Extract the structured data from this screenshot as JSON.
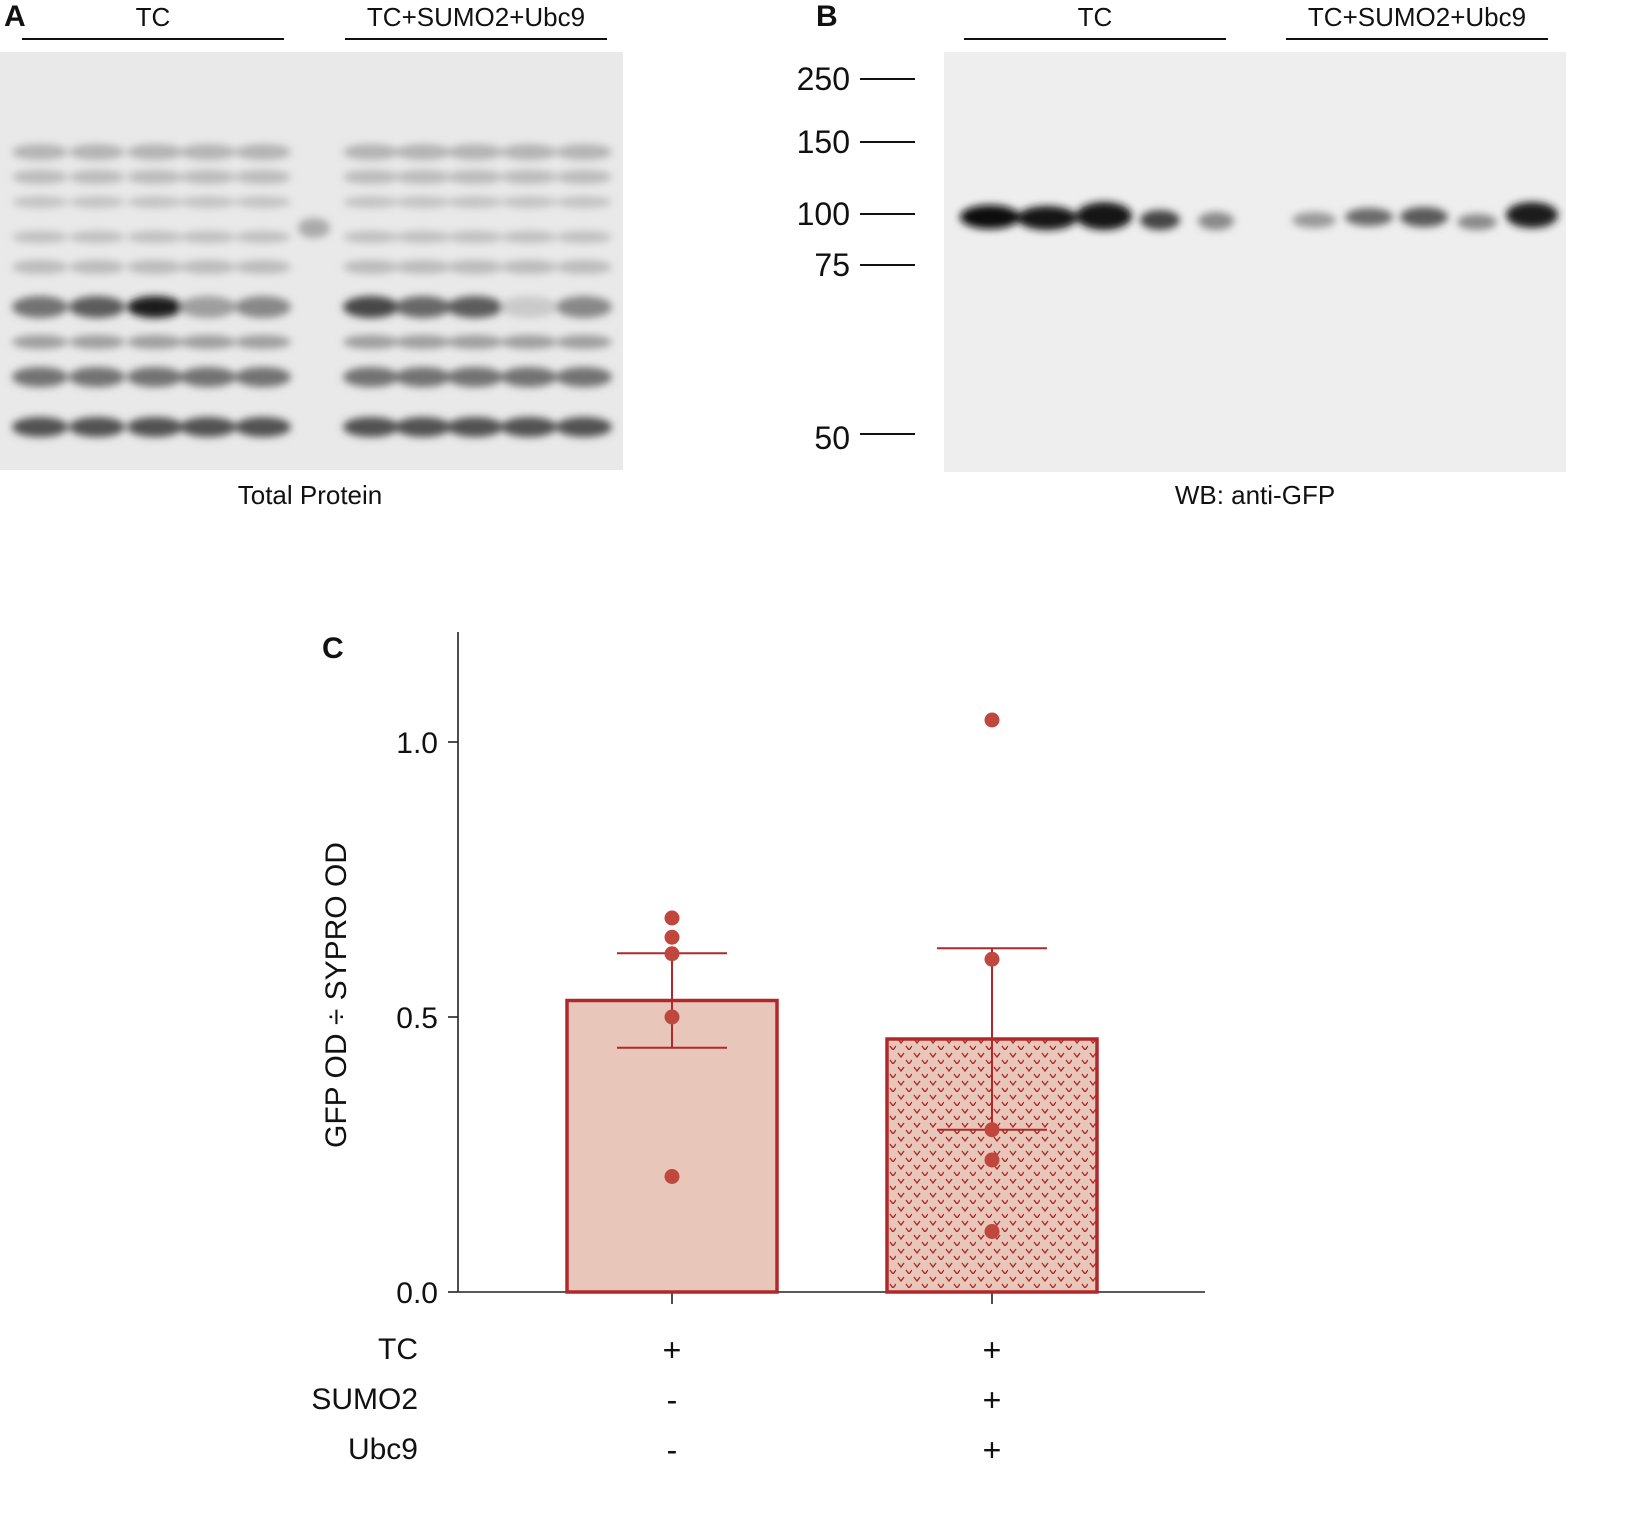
{
  "panel_a": {
    "letter": "A",
    "group_labels": [
      "TC",
      "TC+SUMO2+Ubc9"
    ],
    "caption": "Total Protein"
  },
  "panel_b": {
    "letter": "B",
    "group_labels": [
      "TC",
      "TC+SUMO2+Ubc9"
    ],
    "caption": "WB: anti-GFP",
    "mw_markers": [
      "250",
      "150",
      "100",
      "75",
      "50"
    ]
  },
  "panel_c": {
    "letter": "C",
    "condition_rows": [
      {
        "label": "TC",
        "values": [
          "+",
          "+"
        ]
      },
      {
        "label": "SUMO2",
        "values": [
          "-",
          "+"
        ]
      },
      {
        "label": "Ubc9",
        "values": [
          "-",
          "+"
        ]
      }
    ]
  },
  "chart_data": {
    "type": "bar",
    "title": "",
    "xlabel": "",
    "ylabel": "GFP OD ÷ SYPRO OD",
    "ylim": [
      0,
      1.2
    ],
    "yticks": [
      "0.0",
      "0.5",
      "1.0"
    ],
    "categories": [
      "TC",
      "TC+SUMO2+Ubc9"
    ],
    "values": [
      0.53,
      0.46
    ],
    "error": [
      0.086,
      0.165
    ],
    "points": [
      [
        0.68,
        0.645,
        0.615,
        0.5,
        0.21
      ],
      [
        1.04,
        0.605,
        0.295,
        0.24,
        0.11
      ]
    ],
    "colors": {
      "bar_fill": "#e8c6b9",
      "bar_edge": "#b0282a",
      "point": "#c0473e",
      "error": "#b0282a"
    },
    "patterns": [
      "solid",
      "chevron-dots"
    ]
  }
}
